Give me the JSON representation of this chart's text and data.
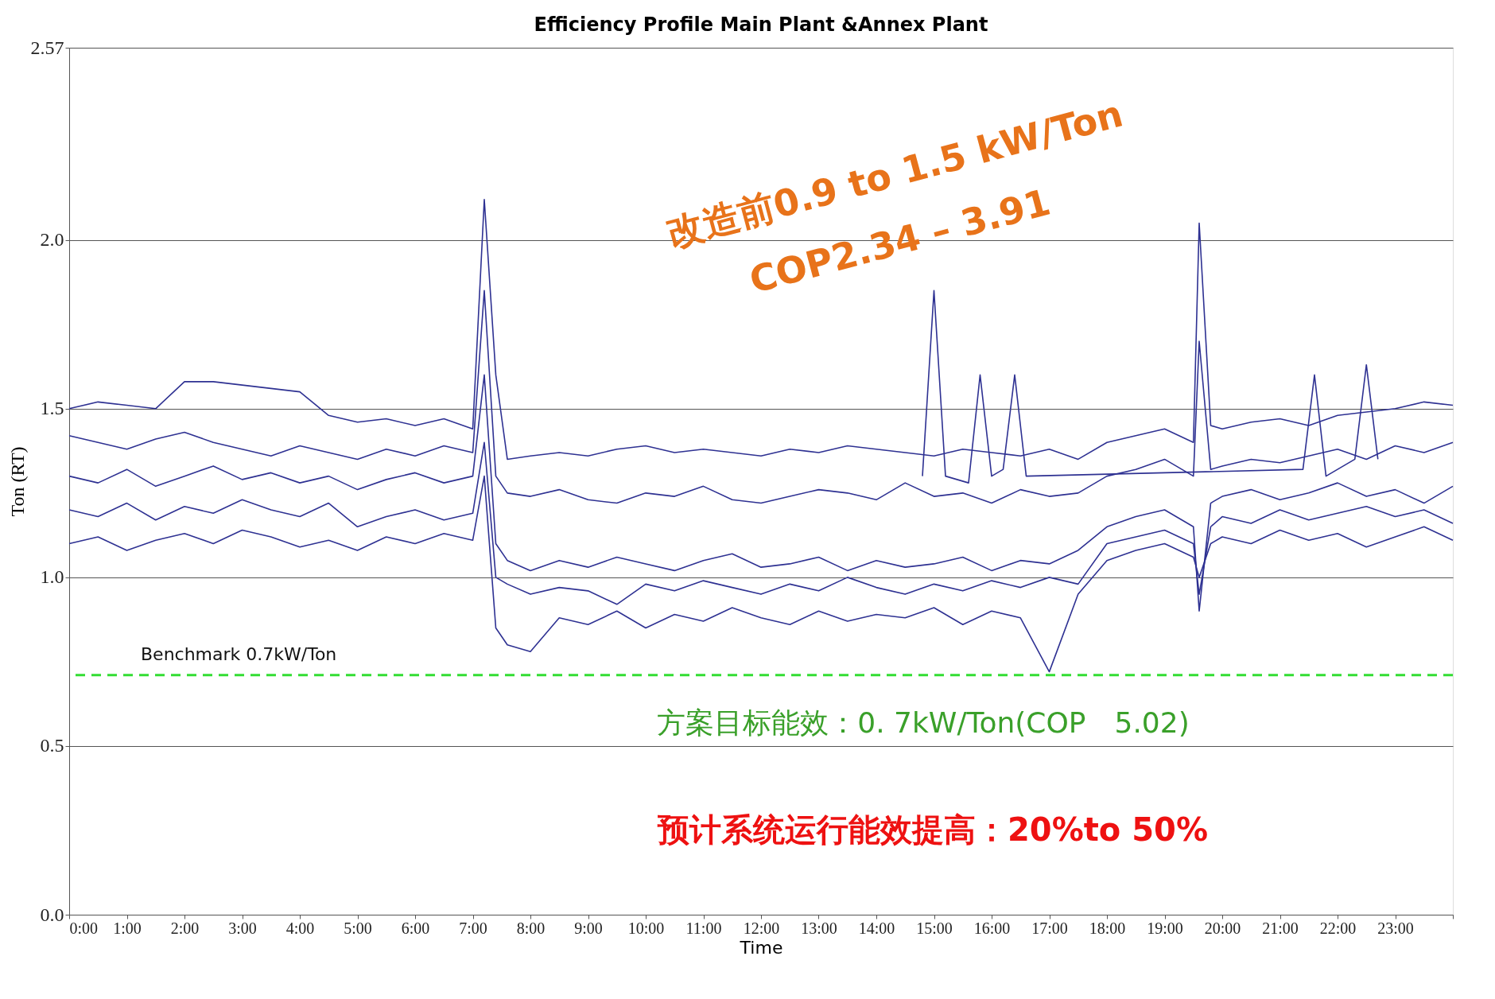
{
  "chart_data": {
    "type": "line",
    "title": "Efficiency Profile Main Plant &Annex Plant",
    "xlabel": "Time",
    "ylabel": "Ton (RT)",
    "xlim": [
      0,
      24
    ],
    "ylim": [
      0,
      2.57
    ],
    "xticks": [
      {
        "value": 0,
        "label": "0:00"
      },
      {
        "value": 1,
        "label": "1:00"
      },
      {
        "value": 2,
        "label": "2:00"
      },
      {
        "value": 3,
        "label": "3:00"
      },
      {
        "value": 4,
        "label": "4:00"
      },
      {
        "value": 5,
        "label": "5:00"
      },
      {
        "value": 6,
        "label": "6:00"
      },
      {
        "value": 7,
        "label": "7:00"
      },
      {
        "value": 8,
        "label": "8:00"
      },
      {
        "value": 9,
        "label": "9:00"
      },
      {
        "value": 10,
        "label": "10:00"
      },
      {
        "value": 11,
        "label": "11:00"
      },
      {
        "value": 12,
        "label": "12:00"
      },
      {
        "value": 13,
        "label": "13:00"
      },
      {
        "value": 14,
        "label": "14:00"
      },
      {
        "value": 15,
        "label": "15:00"
      },
      {
        "value": 16,
        "label": "16:00"
      },
      {
        "value": 17,
        "label": "17:00"
      },
      {
        "value": 18,
        "label": "18:00"
      },
      {
        "value": 19,
        "label": "19:00"
      },
      {
        "value": 20,
        "label": "20:00"
      },
      {
        "value": 21,
        "label": "21:00"
      },
      {
        "value": 22,
        "label": "22:00"
      },
      {
        "value": 23,
        "label": "23:00"
      },
      {
        "value": 24,
        "label": null
      }
    ],
    "yticks": [
      {
        "value": 0,
        "label": "0.0"
      },
      {
        "value": 0.5,
        "label": "0.5"
      },
      {
        "value": 1,
        "label": "1.0"
      },
      1.5,
      {
        "value": 2,
        "label": "2.0"
      },
      2.57
    ],
    "grid": "y",
    "marker": "none",
    "line_style": "solid",
    "x": [
      0,
      0.5,
      1,
      1.5,
      2,
      2.5,
      3,
      3.5,
      4,
      4.5,
      5,
      5.5,
      6,
      6.5,
      7,
      7.2,
      7.4,
      7.6,
      8,
      8.5,
      9,
      9.5,
      10,
      10.5,
      11,
      11.5,
      12,
      12.5,
      13,
      13.5,
      14,
      14.5,
      15,
      15.5,
      16,
      16.5,
      17,
      17.5,
      18,
      18.5,
      19,
      19.5,
      19.6,
      19.8,
      20,
      20.5,
      21,
      21.5,
      22,
      22.5,
      23,
      23.5,
      24
    ],
    "series": [
      {
        "color": "#2e3192",
        "values": [
          1.5,
          1.52,
          1.51,
          1.5,
          1.58,
          1.58,
          1.57,
          1.56,
          1.55,
          1.48,
          1.46,
          1.47,
          1.45,
          1.47,
          1.44,
          2.12,
          1.6,
          1.35,
          1.36,
          1.37,
          1.36,
          1.38,
          1.39,
          1.37,
          1.38,
          1.37,
          1.36,
          1.38,
          1.37,
          1.39,
          1.38,
          1.37,
          1.36,
          1.38,
          1.37,
          1.36,
          1.38,
          1.35,
          1.4,
          1.42,
          1.44,
          1.4,
          2.05,
          1.45,
          1.44,
          1.46,
          1.47,
          1.45,
          1.48,
          1.49,
          1.5,
          1.52,
          1.51
        ]
      },
      {
        "color": "#2e3192",
        "values": [
          1.42,
          1.4,
          1.38,
          1.41,
          1.43,
          1.4,
          1.38,
          1.36,
          1.39,
          1.37,
          1.35,
          1.38,
          1.36,
          1.39,
          1.37,
          1.85,
          1.3,
          1.25,
          1.24,
          1.26,
          1.23,
          1.22,
          1.25,
          1.24,
          1.27,
          1.23,
          1.22,
          1.24,
          1.26,
          1.25,
          1.23,
          1.28,
          1.24,
          1.25,
          1.22,
          1.26,
          1.24,
          1.25,
          1.3,
          1.32,
          1.35,
          1.3,
          1.7,
          1.32,
          1.33,
          1.35,
          1.34,
          1.36,
          1.38,
          1.35,
          1.39,
          1.37,
          1.4
        ]
      },
      {
        "color": "#2e3192",
        "values": [
          1.3,
          1.28,
          1.32,
          1.27,
          1.3,
          1.33,
          1.29,
          1.31,
          1.28,
          1.3,
          1.26,
          1.29,
          1.31,
          1.28,
          1.3,
          1.6,
          1.1,
          1.05,
          1.02,
          1.05,
          1.03,
          1.06,
          1.04,
          1.02,
          1.05,
          1.07,
          1.03,
          1.04,
          1.06,
          1.02,
          1.05,
          1.03,
          1.04,
          1.06,
          1.02,
          1.05,
          1.04,
          1.08,
          1.15,
          1.18,
          1.2,
          1.15,
          0.9,
          1.22,
          1.24,
          1.26,
          1.23,
          1.25,
          1.28,
          1.24,
          1.26,
          1.22,
          1.27
        ]
      },
      {
        "color": "#2e3192",
        "values": [
          1.2,
          1.18,
          1.22,
          1.17,
          1.21,
          1.19,
          1.23,
          1.2,
          1.18,
          1.22,
          1.15,
          1.18,
          1.2,
          1.17,
          1.19,
          1.4,
          1.0,
          0.98,
          0.95,
          0.97,
          0.96,
          0.92,
          0.98,
          0.96,
          0.99,
          0.97,
          0.95,
          0.98,
          0.96,
          1.0,
          0.97,
          0.95,
          0.98,
          0.96,
          0.99,
          0.97,
          1.0,
          0.98,
          1.1,
          1.12,
          1.14,
          1.1,
          0.95,
          1.15,
          1.18,
          1.16,
          1.2,
          1.17,
          1.19,
          1.21,
          1.18,
          1.2,
          1.16
        ]
      },
      {
        "color": "#2e3192",
        "values": [
          1.1,
          1.12,
          1.08,
          1.11,
          1.13,
          1.1,
          1.14,
          1.12,
          1.09,
          1.11,
          1.08,
          1.12,
          1.1,
          1.13,
          1.11,
          1.3,
          0.85,
          0.8,
          0.78,
          0.88,
          0.86,
          0.9,
          0.85,
          0.89,
          0.87,
          0.91,
          0.88,
          0.86,
          0.9,
          0.87,
          0.89,
          0.88,
          0.91,
          0.86,
          0.9,
          0.88,
          0.72,
          0.95,
          1.05,
          1.08,
          1.1,
          1.06,
          1.0,
          1.1,
          1.12,
          1.1,
          1.14,
          1.11,
          1.13,
          1.09,
          1.12,
          1.15,
          1.11
        ]
      },
      {
        "color": "#2e3192",
        "x": [
          14.8,
          15,
          15.2,
          15.6,
          15.8,
          16,
          16.2,
          16.4,
          16.6,
          21.4,
          21.6,
          21.8,
          22.3,
          22.5,
          22.7
        ],
        "values": [
          1.3,
          1.85,
          1.3,
          1.28,
          1.6,
          1.3,
          1.32,
          1.6,
          1.3,
          1.32,
          1.6,
          1.3,
          1.35,
          1.63,
          1.35
        ]
      }
    ],
    "ref_lines": [
      {
        "axis": "y",
        "value": 0.71,
        "label": "Benchmark      0.7kW/Ton",
        "color": "#33dd33",
        "line_style": "dashed"
      }
    ],
    "annotations": [
      "改造前0.9 to 1.5 kW/Ton",
      "COP2.34 – 3.91",
      "方案目标能效：0. 7kW/Ton(COP　5.02)",
      "预计系统运行能效提高：20%to 50%"
    ]
  }
}
